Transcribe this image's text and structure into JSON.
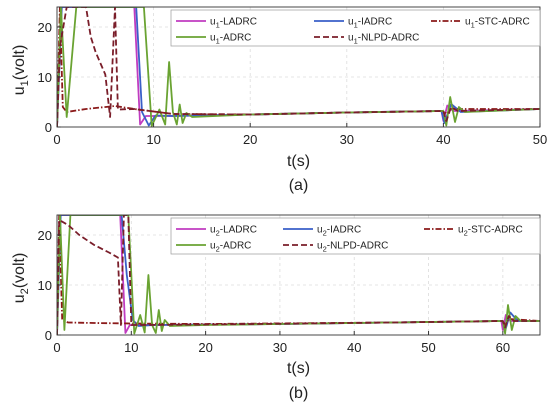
{
  "chart_data": [
    {
      "type": "line",
      "caption": "(a)",
      "xlabel": "t(s)",
      "ylabel_main": "u",
      "ylabel_sub": "1",
      "ylabel_unit": "(volt)",
      "xlim": [
        0,
        50
      ],
      "ylim": [
        0,
        24
      ],
      "xticks": [
        0,
        10,
        20,
        30,
        40,
        50
      ],
      "yticks": [
        0,
        10,
        20
      ],
      "grid": true,
      "legend_placement": "top",
      "series": [
        {
          "name_main": "u",
          "name_sub": "1",
          "name_rest": "-LADRC",
          "color": "#c03cc0",
          "dash": "solid",
          "points": [
            [
              0,
              0
            ],
            [
              0.4,
              24
            ],
            [
              8,
              24
            ],
            [
              8.6,
              0.5
            ],
            [
              9.2,
              2.2
            ],
            [
              12,
              2.2
            ],
            [
              20,
              2.5
            ],
            [
              30,
              2.9
            ],
            [
              39.8,
              3.2
            ],
            [
              40,
              1.2
            ],
            [
              40.4,
              4.3
            ],
            [
              41,
              3.2
            ],
            [
              50,
              3.6
            ]
          ]
        },
        {
          "name_main": "u",
          "name_sub": "1",
          "name_rest": "-IADRC",
          "color": "#3a5fc8",
          "dash": "solid",
          "points": [
            [
              0,
              0
            ],
            [
              0.5,
              24
            ],
            [
              8.2,
              24
            ],
            [
              8.8,
              3
            ],
            [
              9.5,
              0.3
            ],
            [
              10.2,
              2.3
            ],
            [
              12,
              2.2
            ],
            [
              20,
              2.5
            ],
            [
              30,
              2.9
            ],
            [
              39.8,
              3.2
            ],
            [
              40.1,
              0.8
            ],
            [
              40.8,
              4.6
            ],
            [
              41.8,
              3
            ],
            [
              50,
              3.6
            ]
          ]
        },
        {
          "name_main": "u",
          "name_sub": "1",
          "name_rest": "-STC-ADRC",
          "color": "#8b1a1a",
          "dash": "dashdot",
          "points": [
            [
              0,
              0
            ],
            [
              0.3,
              24
            ],
            [
              0.6,
              4
            ],
            [
              1,
              3
            ],
            [
              3,
              3.6
            ],
            [
              6,
              4.2
            ],
            [
              8,
              3.6
            ],
            [
              12,
              2.6
            ],
            [
              20,
              2.5
            ],
            [
              30,
              2.9
            ],
            [
              40,
              3.2
            ],
            [
              40.3,
              2.6
            ],
            [
              40.8,
              3.6
            ],
            [
              50,
              3.6
            ]
          ]
        },
        {
          "name_main": "u",
          "name_sub": "1",
          "name_rest": "-ADRC",
          "color": "#6aa332",
          "dash": "solid",
          "points": [
            [
              0,
              0
            ],
            [
              0.4,
              24
            ],
            [
              1,
              2
            ],
            [
              2,
              24
            ],
            [
              9,
              24
            ],
            [
              9.8,
              0.2
            ],
            [
              10.6,
              3.5
            ],
            [
              11.2,
              0.5
            ],
            [
              11.6,
              13
            ],
            [
              12,
              3
            ],
            [
              12.4,
              0.5
            ],
            [
              12.7,
              4.5
            ],
            [
              13,
              0.8
            ],
            [
              13.4,
              2.8
            ],
            [
              14,
              2
            ],
            [
              20,
              2.5
            ],
            [
              30,
              2.9
            ],
            [
              40,
              3.2
            ],
            [
              40.3,
              0.3
            ],
            [
              40.7,
              6
            ],
            [
              41.2,
              1
            ],
            [
              41.6,
              4
            ],
            [
              42.2,
              3
            ],
            [
              50,
              3.6
            ]
          ]
        },
        {
          "name_main": "u",
          "name_sub": "1",
          "name_rest": "-NLPD-ADRC",
          "color": "#7a1e2a",
          "dash": "dash",
          "points": [
            [
              0,
              0
            ],
            [
              0.3,
              16
            ],
            [
              1,
              24
            ],
            [
              2,
              24
            ],
            [
              3,
              24
            ],
            [
              3.5,
              18
            ],
            [
              4,
              15
            ],
            [
              5,
              10.5
            ],
            [
              5.5,
              2
            ],
            [
              6,
              24
            ],
            [
              6.3,
              3.5
            ],
            [
              8,
              3.6
            ],
            [
              12,
              2.6
            ],
            [
              20,
              2.5
            ],
            [
              30,
              2.9
            ],
            [
              40,
              3.2
            ],
            [
              40.3,
              1.2
            ],
            [
              40.8,
              4
            ],
            [
              41.5,
              3.2
            ],
            [
              50,
              3.6
            ]
          ]
        }
      ]
    },
    {
      "type": "line",
      "caption": "(b)",
      "xlabel": "t(s)",
      "ylabel_main": "u",
      "ylabel_sub": "2",
      "ylabel_unit": "(volt)",
      "xlim": [
        0,
        65
      ],
      "ylim": [
        0,
        24
      ],
      "xticks": [
        0,
        10,
        20,
        30,
        40,
        50,
        60
      ],
      "yticks": [
        0,
        10,
        20
      ],
      "grid": true,
      "legend_placement": "top",
      "series": [
        {
          "name_main": "u",
          "name_sub": "2",
          "name_rest": "-LADRC",
          "color": "#c03cc0",
          "dash": "solid",
          "points": [
            [
              0,
              0
            ],
            [
              0.4,
              24
            ],
            [
              8.5,
              24
            ],
            [
              9.2,
              0.4
            ],
            [
              9.8,
              2
            ],
            [
              12,
              2
            ],
            [
              30,
              2.2
            ],
            [
              45,
              2.5
            ],
            [
              59.8,
              2.8
            ],
            [
              60,
              1
            ],
            [
              60.4,
              4
            ],
            [
              61,
              2.8
            ],
            [
              65,
              2.8
            ]
          ]
        },
        {
          "name_main": "u",
          "name_sub": "2",
          "name_rest": "-IADRC",
          "color": "#3a5fc8",
          "dash": "solid",
          "points": [
            [
              0,
              0
            ],
            [
              0.5,
              24
            ],
            [
              8.7,
              24
            ],
            [
              9.4,
              12
            ],
            [
              10.2,
              3
            ],
            [
              11,
              1.8
            ],
            [
              13,
              2
            ],
            [
              30,
              2.2
            ],
            [
              45,
              2.5
            ],
            [
              60,
              2.8
            ],
            [
              60.3,
              0.8
            ],
            [
              61,
              4.5
            ],
            [
              62,
              2.8
            ],
            [
              65,
              2.8
            ]
          ]
        },
        {
          "name_main": "u",
          "name_sub": "2",
          "name_rest": "-STC-ADRC",
          "color": "#8b1a1a",
          "dash": "dashdot",
          "points": [
            [
              0,
              0
            ],
            [
              0.3,
              24
            ],
            [
              0.7,
              3
            ],
            [
              1.5,
              2.5
            ],
            [
              5,
              2.4
            ],
            [
              10,
              2.3
            ],
            [
              20,
              2.2
            ],
            [
              45,
              2.5
            ],
            [
              60,
              2.8
            ],
            [
              60.3,
              2
            ],
            [
              60.8,
              3.2
            ],
            [
              65,
              2.8
            ]
          ]
        },
        {
          "name_main": "u",
          "name_sub": "2",
          "name_rest": "-ADRC",
          "color": "#6aa332",
          "dash": "solid",
          "points": [
            [
              0,
              0
            ],
            [
              0.4,
              24
            ],
            [
              1,
              1
            ],
            [
              1.8,
              24
            ],
            [
              9.6,
              24
            ],
            [
              10.4,
              0.3
            ],
            [
              11.2,
              4
            ],
            [
              11.8,
              0.5
            ],
            [
              12.3,
              12
            ],
            [
              12.8,
              2
            ],
            [
              13.3,
              0.4
            ],
            [
              13.7,
              5
            ],
            [
              14.1,
              0.8
            ],
            [
              14.5,
              3
            ],
            [
              15.2,
              1.8
            ],
            [
              20,
              2
            ],
            [
              30,
              2.2
            ],
            [
              45,
              2.5
            ],
            [
              60,
              2.8
            ],
            [
              60.3,
              0.3
            ],
            [
              60.7,
              6
            ],
            [
              61.2,
              1
            ],
            [
              61.7,
              3.8
            ],
            [
              62.4,
              2.8
            ],
            [
              65,
              2.8
            ]
          ]
        },
        {
          "name_main": "u",
          "name_sub": "2",
          "name_rest": "-NLPD-ADRC",
          "color": "#7a1e2a",
          "dash": "dash",
          "points": [
            [
              0,
              0
            ],
            [
              0.3,
              23
            ],
            [
              1.5,
              22
            ],
            [
              3,
              20
            ],
            [
              5,
              18
            ],
            [
              7,
              16.5
            ],
            [
              8.2,
              15.5
            ],
            [
              8.6,
              2
            ],
            [
              9,
              24
            ],
            [
              9.6,
              24
            ],
            [
              10,
              2
            ],
            [
              11,
              2
            ],
            [
              20,
              2.1
            ],
            [
              45,
              2.5
            ],
            [
              60,
              2.8
            ],
            [
              60.3,
              1.5
            ],
            [
              60.8,
              3.8
            ],
            [
              61.5,
              2.8
            ],
            [
              65,
              2.8
            ]
          ]
        }
      ]
    }
  ]
}
